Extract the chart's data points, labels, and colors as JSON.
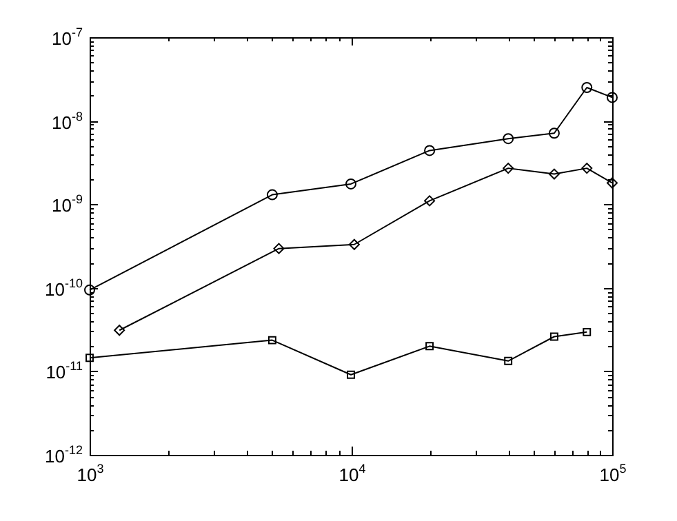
{
  "chart_data": {
    "type": "line",
    "log": "xy",
    "grid": false,
    "legend": false,
    "line_style": "solid",
    "xlim": [
      1000,
      100000
    ],
    "ylim": [
      1e-12,
      1e-07
    ],
    "xticks": [
      {
        "value": 1000,
        "label": "10$^{3}$"
      },
      {
        "value": 2000,
        "label": null
      },
      {
        "value": 3000,
        "label": null
      },
      {
        "value": 4000,
        "label": null
      },
      {
        "value": 5000,
        "label": null
      },
      {
        "value": 6000,
        "label": null
      },
      {
        "value": 7000,
        "label": null
      },
      {
        "value": 8000,
        "label": null
      },
      {
        "value": 9000,
        "label": null
      },
      {
        "value": 10000,
        "label": "10$^{4}$"
      },
      {
        "value": 20000,
        "label": null
      },
      {
        "value": 30000,
        "label": null
      },
      {
        "value": 40000,
        "label": null
      },
      {
        "value": 50000,
        "label": null
      },
      {
        "value": 60000,
        "label": null
      },
      {
        "value": 70000,
        "label": null
      },
      {
        "value": 80000,
        "label": null
      },
      {
        "value": 90000,
        "label": null
      },
      {
        "value": 100000,
        "label": "10$^{5}$"
      }
    ],
    "yticks": [
      {
        "value": 1e-12,
        "label": "10$^{-12}$"
      },
      {
        "value": 2e-12,
        "label": null
      },
      {
        "value": 3e-12,
        "label": null
      },
      {
        "value": 4e-12,
        "label": null
      },
      {
        "value": 5e-12,
        "label": null
      },
      {
        "value": 6e-12,
        "label": null
      },
      {
        "value": 7e-12,
        "label": null
      },
      {
        "value": 8e-12,
        "label": null
      },
      {
        "value": 9e-12,
        "label": null
      },
      {
        "value": 1e-11,
        "label": "10$^{-11}$"
      },
      {
        "value": 2e-11,
        "label": null
      },
      {
        "value": 3e-11,
        "label": null
      },
      {
        "value": 4e-11,
        "label": null
      },
      {
        "value": 5e-11,
        "label": null
      },
      {
        "value": 6e-11,
        "label": null
      },
      {
        "value": 7e-11,
        "label": null
      },
      {
        "value": 8e-11,
        "label": null
      },
      {
        "value": 9e-11,
        "label": null
      },
      {
        "value": 1e-10,
        "label": "10$^{-10}$"
      },
      {
        "value": 2e-10,
        "label": null
      },
      {
        "value": 3e-10,
        "label": null
      },
      {
        "value": 4e-10,
        "label": null
      },
      {
        "value": 5e-10,
        "label": null
      },
      {
        "value": 6e-10,
        "label": null
      },
      {
        "value": 7e-10,
        "label": null
      },
      {
        "value": 8e-10,
        "label": null
      },
      {
        "value": 9e-10,
        "label": null
      },
      {
        "value": 1e-09,
        "label": "10$^{-9}$"
      },
      {
        "value": 2e-09,
        "label": null
      },
      {
        "value": 3e-09,
        "label": null
      },
      {
        "value": 4e-09,
        "label": null
      },
      {
        "value": 5e-09,
        "label": null
      },
      {
        "value": 6e-09,
        "label": null
      },
      {
        "value": 7e-09,
        "label": null
      },
      {
        "value": 8e-09,
        "label": null
      },
      {
        "value": 9e-09,
        "label": null
      },
      {
        "value": 1e-08,
        "label": "10$^{-8}$"
      },
      {
        "value": 2e-08,
        "label": null
      },
      {
        "value": 3e-08,
        "label": null
      },
      {
        "value": 4e-08,
        "label": null
      },
      {
        "value": 5e-08,
        "label": null
      },
      {
        "value": 6e-08,
        "label": null
      },
      {
        "value": 7e-08,
        "label": null
      },
      {
        "value": 8e-08,
        "label": null
      },
      {
        "value": 9e-08,
        "label": null
      },
      {
        "value": 1e-07,
        "label": "10$^{-7}$"
      }
    ],
    "series": [
      {
        "color": "#000000",
        "marker": "circle",
        "x": [
          1000,
          5000,
          10000,
          20000,
          40000,
          60000,
          80000,
          100000
        ],
        "values": [
          9.4e-11,
          1.3e-09,
          1.75e-09,
          4.4e-09,
          6.1e-09,
          7.1e-09,
          2.5e-08,
          1.9e-08
        ]
      },
      {
        "color": "#000000",
        "marker": "diamond",
        "x": [
          1300,
          5300,
          10300,
          20000,
          40000,
          60000,
          80000,
          100000
        ],
        "values": [
          3.1e-11,
          2.95e-10,
          3.3e-10,
          1.1e-09,
          2.7e-09,
          2.3e-09,
          2.7e-09,
          1.8e-09
        ]
      },
      {
        "color": "#000000",
        "marker": "square",
        "x": [
          1000,
          5000,
          10000,
          20000,
          40000,
          60000,
          80000
        ],
        "values": [
          1.45e-11,
          2.36e-11,
          9.1e-12,
          2e-11,
          1.33e-11,
          2.6e-11,
          2.95e-11
        ]
      }
    ]
  }
}
